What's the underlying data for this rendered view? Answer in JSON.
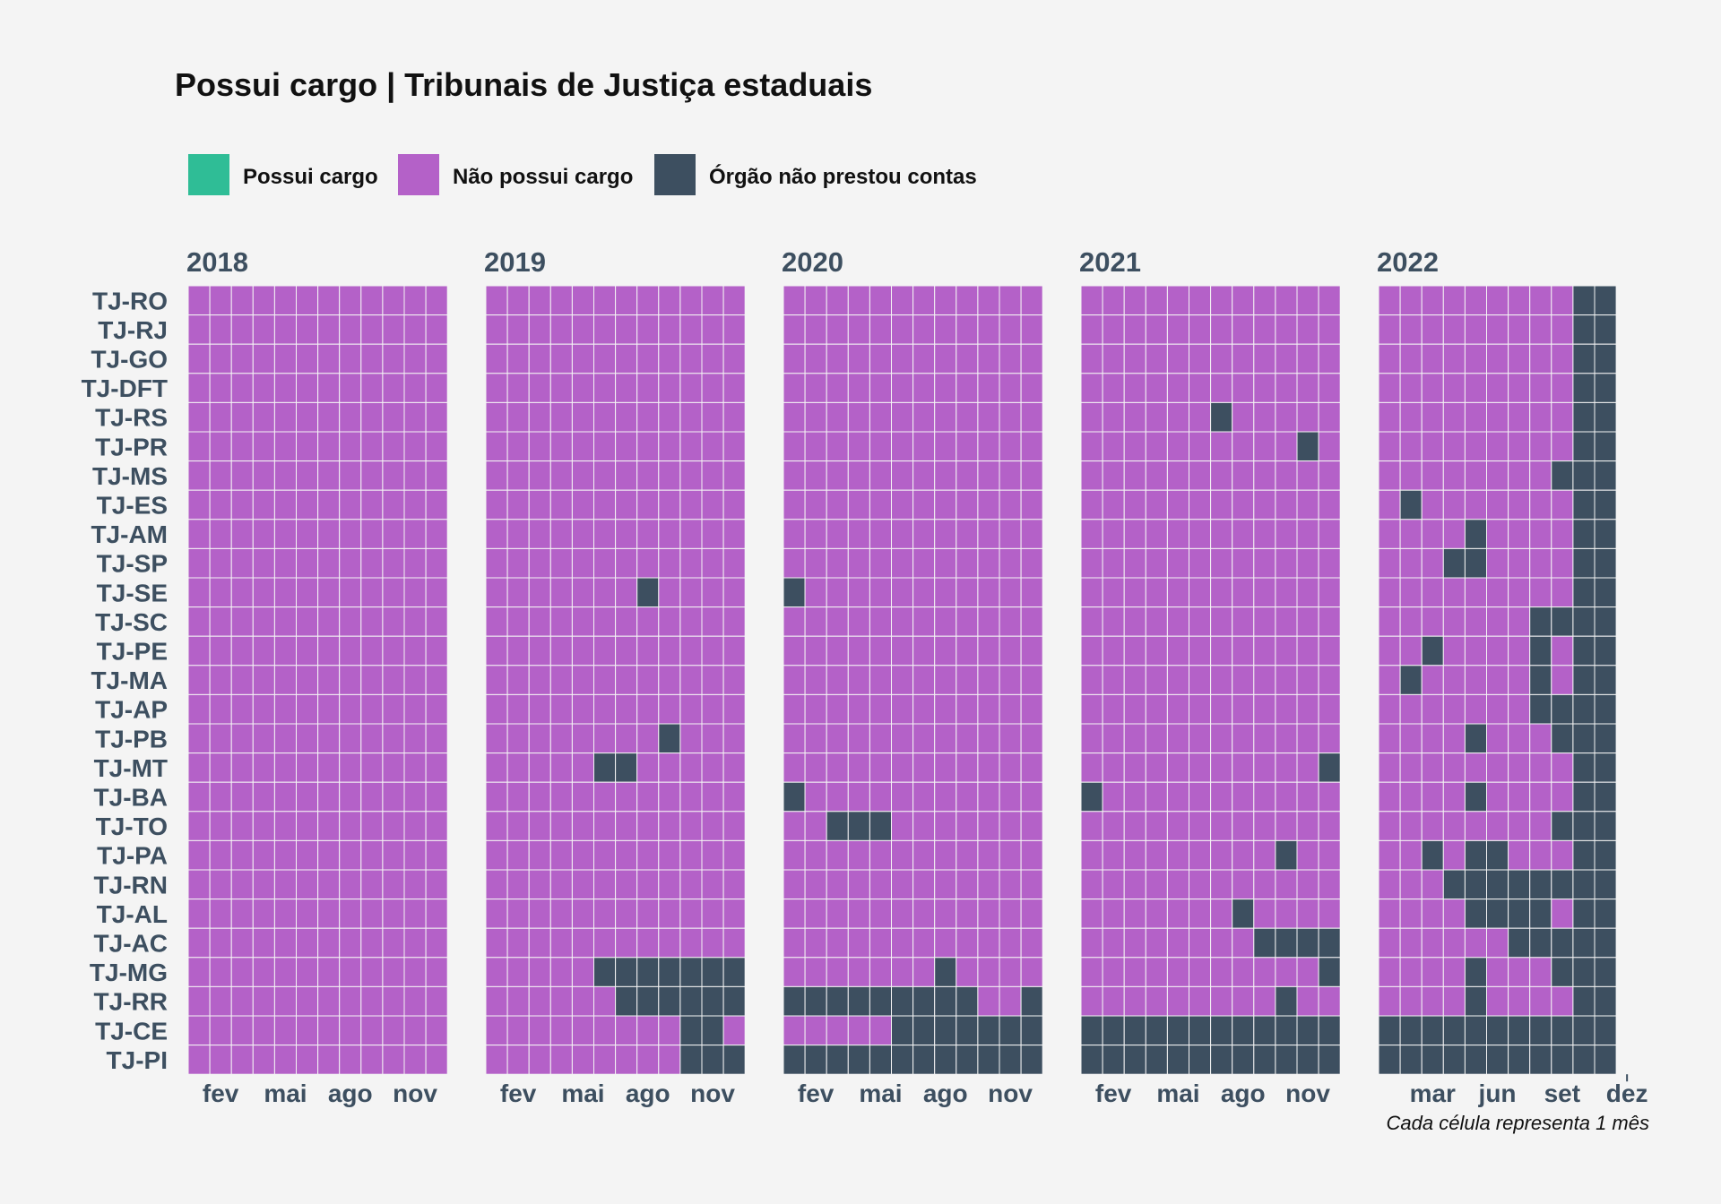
{
  "chart_data": {
    "type": "heatmap",
    "title": "Possui cargo | Tribunais de Justiça estaduais",
    "caption": "Cada célula representa 1 mês",
    "legend": {
      "position": "top-left",
      "items": [
        {
          "key": "P",
          "label": "Possui cargo",
          "color": "#2fbd96"
        },
        {
          "key": "N",
          "label": "Não possui cargo",
          "color": "#b461c8"
        },
        {
          "key": "O",
          "label": "Órgão não prestou contas",
          "color": "#3d4f60"
        }
      ]
    },
    "cell_color_default": "N",
    "x_tick_labels": [
      [
        "fev",
        "mai",
        "ago",
        "nov"
      ],
      [
        "fev",
        "mai",
        "ago",
        "nov"
      ],
      [
        "fev",
        "mai",
        "ago",
        "nov"
      ],
      [
        "fev",
        "mai",
        "ago",
        "nov"
      ],
      [
        "mar",
        "jun",
        "set",
        "dez"
      ]
    ],
    "x_tick_months": [
      [
        2,
        5,
        8,
        11
      ],
      [
        2,
        5,
        8,
        11
      ],
      [
        2,
        5,
        8,
        11
      ],
      [
        2,
        5,
        8,
        11
      ],
      [
        3,
        6,
        9,
        12
      ]
    ],
    "panels": [
      {
        "year": "2018",
        "months": 12
      },
      {
        "year": "2019",
        "months": 12
      },
      {
        "year": "2020",
        "months": 12
      },
      {
        "year": "2021",
        "months": 12
      },
      {
        "year": "2022",
        "months": 11
      }
    ],
    "rows": [
      {
        "name": "TJ-RO",
        "status": [
          "NNNNNNNNNNNN",
          "NNNNNNNNNNNN",
          "NNNNNNNNNNNN",
          "NNNNNNNNNNNN",
          "NNNNNNNNNOO"
        ]
      },
      {
        "name": "TJ-RJ",
        "status": [
          "NNNNNNNNNNNN",
          "NNNNNNNNNNNN",
          "NNNNNNNNNNNN",
          "NNNNNNNNNNNN",
          "NNNNNNNNNOO"
        ]
      },
      {
        "name": "TJ-GO",
        "status": [
          "NNNNNNNNNNNN",
          "NNNNNNNNNNNN",
          "NNNNNNNNNNNN",
          "NNNNNNNNNNNN",
          "NNNNNNNNNOO"
        ]
      },
      {
        "name": "TJ-DFT",
        "status": [
          "NNNNNNNNNNNN",
          "NNNNNNNNNNNN",
          "NNNNNNNNNNNN",
          "NNNNNNNNNNNN",
          "NNNNNNNNNOO"
        ]
      },
      {
        "name": "TJ-RS",
        "status": [
          "NNNNNNNNNNNN",
          "NNNNNNNNNNNN",
          "NNNNNNNNNNNN",
          "NNNNNNONNNNN",
          "NNNNNNNNNOO"
        ]
      },
      {
        "name": "TJ-PR",
        "status": [
          "NNNNNNNNNNNN",
          "NNNNNNNNNNNN",
          "NNNNNNNNNNNN",
          "NNNNNNNNNNON",
          "NNNNNNNNNOO"
        ]
      },
      {
        "name": "TJ-MS",
        "status": [
          "NNNNNNNNNNNN",
          "NNNNNNNNNNNN",
          "NNNNNNNNNNNN",
          "NNNNNNNNNNNN",
          "NNNNNNNNOOO"
        ]
      },
      {
        "name": "TJ-ES",
        "status": [
          "NNNNNNNNNNNN",
          "NNNNNNNNNNNN",
          "NNNNNNNNNNNN",
          "NNNNNNNNNNNN",
          "NONNNNNNNOO"
        ]
      },
      {
        "name": "TJ-AM",
        "status": [
          "NNNNNNNNNNNN",
          "NNNNNNNNNNNN",
          "NNNNNNNNNNNN",
          "NNNNNNNNNNNN",
          "NNNNONNNNOO"
        ]
      },
      {
        "name": "TJ-SP",
        "status": [
          "NNNNNNNNNNNN",
          "NNNNNNNNNNNN",
          "NNNNNNNNNNNN",
          "NNNNNNNNNNNN",
          "NNNOONNNNOO"
        ]
      },
      {
        "name": "TJ-SE",
        "status": [
          "NNNNNNNNNNNN",
          "NNNNNNNONNNN",
          "ONNNNNNNNNNN",
          "NNNNNNNNNNNN",
          "NNNNNNNNNOO"
        ]
      },
      {
        "name": "TJ-SC",
        "status": [
          "NNNNNNNNNNNN",
          "NNNNNNNNNNNN",
          "NNNNNNNNNNNN",
          "NNNNNNNNNNNN",
          "NNNNNNNOOOO"
        ]
      },
      {
        "name": "TJ-PE",
        "status": [
          "NNNNNNNNNNNN",
          "NNNNNNNNNNNN",
          "NNNNNNNNNNNN",
          "NNNNNNNNNNNN",
          "NNONNNNONOO"
        ]
      },
      {
        "name": "TJ-MA",
        "status": [
          "NNNNNNNNNNNN",
          "NNNNNNNNNNNN",
          "NNNNNNNNNNNN",
          "NNNNNNNNNNNN",
          "NONNNNNONOO"
        ]
      },
      {
        "name": "TJ-AP",
        "status": [
          "NNNNNNNNNNNN",
          "NNNNNNNNNNNN",
          "NNNNNNNNNNNN",
          "NNNNNNNNNNNN",
          "NNNNNNNOOOO"
        ]
      },
      {
        "name": "TJ-PB",
        "status": [
          "NNNNNNNNNNNN",
          "NNNNNNNNONNN",
          "NNNNNNNNNNNN",
          "NNNNNNNNNNNN",
          "NNNNONNNOOO"
        ]
      },
      {
        "name": "TJ-MT",
        "status": [
          "NNNNNNNNNNNN",
          "NNNNNOONNNNN",
          "NNNNNNNNNNNN",
          "NNNNNNNNNNNO",
          "NNNNNNNNNOO"
        ]
      },
      {
        "name": "TJ-BA",
        "status": [
          "NNNNNNNNNNNN",
          "NNNNNNNNNNNN",
          "ONNNNNNNNNNN",
          "ONNNNNNNNNNN",
          "NNNNONNNNOO"
        ]
      },
      {
        "name": "TJ-TO",
        "status": [
          "NNNNNNNNNNNN",
          "NNNNNNNNNNNN",
          "NNOOONNNNNNN",
          "NNNNNNNNNNNN",
          "NNNNNNNNOOO"
        ]
      },
      {
        "name": "TJ-PA",
        "status": [
          "NNNNNNNNNNNN",
          "NNNNNNNNNNNN",
          "NNNNNNNNNNNN",
          "NNNNNNNNNONN",
          "NNONOONNNOO"
        ]
      },
      {
        "name": "TJ-RN",
        "status": [
          "NNNNNNNNNNNN",
          "NNNNNNNNNNNN",
          "NNNNNNNNNNNN",
          "NNNNNNNNNNNN",
          "NNNOOOOOOOO"
        ]
      },
      {
        "name": "TJ-AL",
        "status": [
          "NNNNNNNNNNNN",
          "NNNNNNNNNNNN",
          "NNNNNNNNNNNN",
          "NNNNNNNONNNN",
          "NNNNOOOONOO"
        ]
      },
      {
        "name": "TJ-AC",
        "status": [
          "NNNNNNNNNNNN",
          "NNNNNNNNNNNN",
          "NNNNNNNNNNNN",
          "NNNNNNNNOOOO",
          "NNNNNNOOOOO"
        ]
      },
      {
        "name": "TJ-MG",
        "status": [
          "NNNNNNNNNNNN",
          "NNNNNOOOOOOO",
          "NNNNNNNONNNN",
          "NNNNNNNNNNNO",
          "NNNNONNNOOO"
        ]
      },
      {
        "name": "TJ-RR",
        "status": [
          "NNNNNNNNNNNN",
          "NNNNNNOOOOOO",
          "OOOOOOOOONNO",
          "NNNNNNNNNONN",
          "NNNNONNNNOO"
        ]
      },
      {
        "name": "TJ-CE",
        "status": [
          "NNNNNNNNNNNN",
          "NNNNNNNNNOON",
          "NNNNNOOOOOOO",
          "OOOOOOOOOOOO",
          "OOOOOOOOOOO"
        ]
      },
      {
        "name": "TJ-PI",
        "status": [
          "NNNNNNNNNNNN",
          "NNNNNNNNNOOO",
          "OOOOOOOOOOOO",
          "OOOOOOOOOOOO",
          "OOOOOOOOOOO"
        ]
      }
    ]
  }
}
